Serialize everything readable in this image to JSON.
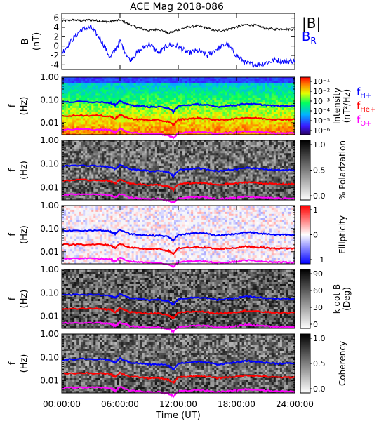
{
  "title": "ACE Mag 2018-086",
  "xlabel": "Time (UT)",
  "x_ticks": [
    "00:00:00",
    "06:00:00",
    "12:00:00",
    "18:00:00",
    "24:00:00"
  ],
  "x_tick_hours": [
    0,
    6,
    12,
    18,
    24
  ],
  "xlim": [
    0,
    24
  ],
  "colors": {
    "total_field": "#000000",
    "radial_field": "#0000ff",
    "f_hplus": "#0000ff",
    "f_heplus": "#ff0000",
    "f_oplus": "#ff00ff"
  },
  "chart_data": [
    {
      "type": "line",
      "panel": "field",
      "ylabel": "B\n(nT)",
      "ylim": [
        -5,
        7
      ],
      "y_ticks": [
        "6",
        "4",
        "2",
        "0",
        "-2",
        "-4"
      ],
      "y_tick_values": [
        6,
        4,
        2,
        0,
        -2,
        -4
      ],
      "legend": [
        "|B|",
        "B_R"
      ],
      "legend_text": {
        "b_total": "|B|",
        "b_r_main": "B",
        "b_r_sub": "R"
      },
      "series": [
        {
          "name": "|B|",
          "x": [
            0,
            1,
            2,
            3,
            4,
            5,
            6,
            7,
            8,
            9,
            10,
            11,
            12,
            13,
            14,
            15,
            16,
            17,
            18,
            19,
            20,
            21,
            22,
            23,
            24
          ],
          "values": [
            5.3,
            5.6,
            5.4,
            5.6,
            5.3,
            5.2,
            5.6,
            4.6,
            3.8,
            3.3,
            3.6,
            2.7,
            3.5,
            4.1,
            4.3,
            3.8,
            3.2,
            3.5,
            4.1,
            4.6,
            4.4,
            3.8,
            3.6,
            3.7,
            3.5
          ]
        },
        {
          "name": "B_R",
          "x": [
            0,
            1,
            2,
            3,
            4,
            5,
            6,
            7,
            8,
            9,
            10,
            11,
            12,
            13,
            14,
            15,
            16,
            17,
            18,
            19,
            20,
            21,
            22,
            23,
            24
          ],
          "values": [
            -1.5,
            1.2,
            3.5,
            4.0,
            1.5,
            -2.5,
            1.0,
            -3.0,
            -1.0,
            0.5,
            -1.5,
            0.3,
            0.0,
            -1.5,
            -1.0,
            -2.0,
            -0.5,
            0.5,
            -2.0,
            -3.7,
            -4.0,
            -3.6,
            -3.0,
            -3.3,
            -3.1
          ]
        }
      ]
    },
    {
      "type": "heatmap",
      "panel": "intensity",
      "ylabel": "f\n(Hz)",
      "yscale": "log",
      "ylim": [
        0.003,
        1.0
      ],
      "y_ticks": [
        "1.00",
        "0.10",
        "0.01"
      ],
      "colorbar_label": "Intensity\n(nT²/Hz)",
      "colorbar_label_lines": [
        "Intensity",
        "(nT²/Hz)"
      ],
      "colorbar_ticks": [
        "10⁻¹",
        "10⁻²",
        "10⁻³",
        "10⁻⁴",
        "10⁻⁵",
        "10⁻⁶"
      ],
      "colormap": "rainbow",
      "legend": [
        "f_H+",
        "f_He+",
        "f_O+"
      ],
      "legend_text": {
        "h_main": "f",
        "h_sub": "H+",
        "he_main": "f",
        "he_sub": "He+",
        "o_main": "f",
        "o_sub": "O+"
      }
    },
    {
      "type": "heatmap",
      "panel": "polarization",
      "ylabel": "f\n(Hz)",
      "yscale": "log",
      "ylim": [
        0.003,
        1.0
      ],
      "y_ticks": [
        "1.00",
        "0.10",
        "0.01"
      ],
      "colorbar_label": "% Polarization",
      "colorbar_ticks": [
        "1.0",
        "0.5",
        "0.0"
      ],
      "colormap": "grayscale"
    },
    {
      "type": "heatmap",
      "panel": "ellipticity",
      "ylabel": "f\n(Hz)",
      "yscale": "log",
      "ylim": [
        0.003,
        1.0
      ],
      "y_ticks": [
        "1.00",
        "0.10",
        "0.01"
      ],
      "colorbar_label": "Ellipticity",
      "colorbar_ticks": [
        "1",
        "0",
        "−1"
      ],
      "colormap": "blue-white-red"
    },
    {
      "type": "heatmap",
      "panel": "kdotb",
      "ylabel": "f\n(Hz)",
      "yscale": "log",
      "ylim": [
        0.003,
        1.0
      ],
      "y_ticks": [
        "1.00",
        "0.10",
        "0.01"
      ],
      "colorbar_label": "k dot B\n(Deg)",
      "colorbar_label_lines": [
        "k dot B",
        "(Deg)"
      ],
      "colorbar_ticks": [
        "90",
        "60",
        "30",
        "0"
      ],
      "colormap": "grayscale"
    },
    {
      "type": "heatmap",
      "panel": "coherency",
      "ylabel": "f\n(Hz)",
      "yscale": "log",
      "ylim": [
        0.003,
        1.0
      ],
      "y_ticks": [
        "1.00",
        "0.10",
        "0.01"
      ],
      "colorbar_label": "Coherency",
      "colorbar_ticks": [
        "1.0",
        "0.5",
        "0.0"
      ],
      "colormap": "grayscale"
    }
  ],
  "gyrofrequency_lines": {
    "hours": [
      0,
      2,
      4,
      5,
      5.5,
      6,
      7,
      8,
      9,
      10,
      11,
      11.5,
      12,
      13,
      14,
      15,
      16,
      17,
      18,
      19,
      20,
      21,
      22,
      23,
      24
    ],
    "f_hplus": [
      0.08,
      0.085,
      0.082,
      0.075,
      0.06,
      0.09,
      0.06,
      0.055,
      0.05,
      0.05,
      0.045,
      0.03,
      0.055,
      0.06,
      0.065,
      0.06,
      0.05,
      0.055,
      0.06,
      0.07,
      0.065,
      0.06,
      0.055,
      0.055,
      0.055
    ],
    "f_heplus": [
      0.02,
      0.021,
      0.0205,
      0.019,
      0.015,
      0.022,
      0.015,
      0.014,
      0.013,
      0.013,
      0.011,
      0.008,
      0.014,
      0.015,
      0.016,
      0.015,
      0.013,
      0.014,
      0.015,
      0.017,
      0.016,
      0.015,
      0.014,
      0.014,
      0.014
    ],
    "f_oplus": [
      0.005,
      0.0052,
      0.0051,
      0.0048,
      0.0038,
      0.0055,
      0.0038,
      0.0035,
      0.0033,
      0.0033,
      0.0028,
      0.0022,
      0.0035,
      0.0038,
      0.004,
      0.0038,
      0.0033,
      0.0035,
      0.0038,
      0.0043,
      0.004,
      0.0038,
      0.0035,
      0.0035,
      0.0035
    ]
  }
}
